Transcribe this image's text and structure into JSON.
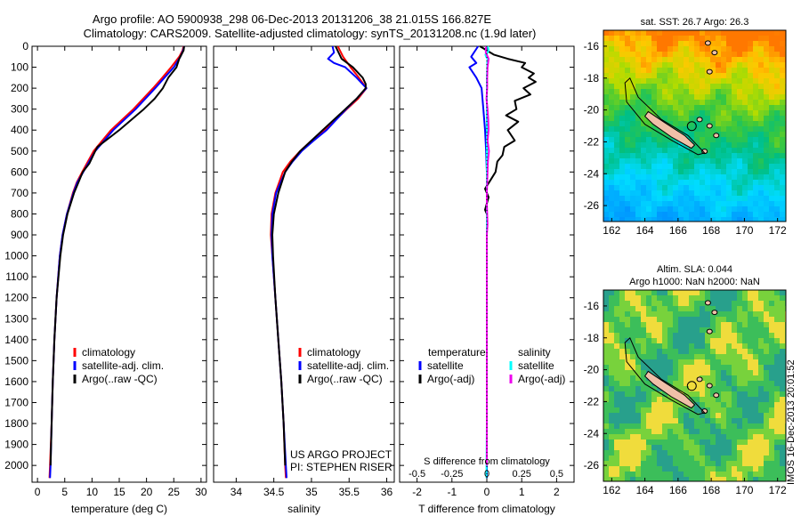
{
  "header": {
    "line1": "Argo profile: AO 5900938_298 06-Dec-2013 20131206_38 21.015S 166.827E",
    "line2": "Climatology: CARS2009. Satellite-adjusted climatology: synTS_20131208.nc (1.9d later)"
  },
  "side_stamp": "IMOS 16-Dec-2013 20:01:52",
  "chart_data": [
    {
      "id": "temperature",
      "type": "line",
      "xlabel": "temperature (deg C)",
      "ylabel": "",
      "xlim": [
        -1,
        31
      ],
      "ylim": [
        2080,
        0
      ],
      "xticks": [
        0,
        5,
        10,
        15,
        20,
        25,
        30
      ],
      "yticks": [
        0,
        100,
        200,
        300,
        400,
        500,
        600,
        700,
        800,
        900,
        1000,
        1100,
        1200,
        1300,
        1400,
        1500,
        1600,
        1700,
        1800,
        1900,
        2000
      ],
      "legend": {
        "position": "lower-left",
        "entries": [
          "climatology",
          "satellite-adj. clim.",
          "Argo(..raw -QC)"
        ]
      },
      "series": [
        {
          "name": "climatology",
          "color": "#ff0000",
          "depth": [
            0,
            20,
            50,
            100,
            150,
            200,
            300,
            400,
            500,
            600,
            650,
            700,
            800,
            900,
            1000,
            1200,
            1400,
            1600,
            1800,
            2000,
            2060
          ],
          "values": [
            26.8,
            26.6,
            26.0,
            24.5,
            22.9,
            21.2,
            17.6,
            13.5,
            10.3,
            8.2,
            7.2,
            6.5,
            5.4,
            4.6,
            4.1,
            3.5,
            3.1,
            2.8,
            2.6,
            2.3,
            2.2
          ]
        },
        {
          "name": "satellite-adj. clim.",
          "color": "#0000ff",
          "depth": [
            0,
            20,
            50,
            100,
            150,
            200,
            300,
            400,
            500,
            600,
            650,
            700,
            800,
            900,
            1000,
            1200,
            1400,
            1600,
            1800,
            2000,
            2060
          ],
          "values": [
            26.9,
            26.7,
            26.2,
            25.0,
            23.3,
            21.6,
            18.0,
            13.9,
            10.6,
            8.4,
            7.3,
            6.6,
            5.4,
            4.6,
            4.1,
            3.5,
            3.1,
            2.8,
            2.6,
            2.4,
            2.3
          ]
        },
        {
          "name": "Argo(..raw -QC)",
          "color": "#000000",
          "depth": [
            0,
            20,
            60,
            100,
            150,
            200,
            250,
            300,
            400,
            480,
            500,
            560,
            600,
            650,
            700,
            800,
            900,
            1000,
            1200,
            1400,
            1600,
            1800,
            2000
          ],
          "values": [
            26.9,
            26.8,
            26.0,
            25.5,
            24.0,
            23.0,
            21.5,
            19.5,
            15.0,
            11.0,
            10.6,
            9.5,
            8.3,
            7.5,
            6.7,
            5.5,
            4.7,
            4.2,
            3.5,
            3.1,
            2.8,
            2.6,
            2.4
          ]
        }
      ]
    },
    {
      "id": "salinity",
      "type": "line",
      "xlabel": "salinity",
      "ylabel": "",
      "xlim": [
        33.7,
        36.1
      ],
      "ylim": [
        2080,
        0
      ],
      "xticks": [
        34,
        34.5,
        35,
        35.5,
        36
      ],
      "legend": {
        "position": "lower-right",
        "entries": [
          "climatology",
          "satellite-adj. clim.",
          "Argo(..raw -QC)"
        ]
      },
      "annotation": [
        "US ARGO PROJECT",
        "PI: STEPHEN RISER"
      ],
      "series": [
        {
          "name": "climatology",
          "color": "#ff0000",
          "depth": [
            0,
            50,
            100,
            150,
            200,
            250,
            300,
            400,
            450,
            500,
            550,
            600,
            700,
            800,
            900,
            1000,
            1200,
            1400,
            1600,
            1800,
            2000,
            2060
          ],
          "values": [
            35.35,
            35.42,
            35.52,
            35.63,
            35.73,
            35.62,
            35.47,
            35.18,
            35.0,
            34.85,
            34.72,
            34.62,
            34.52,
            34.47,
            34.46,
            34.48,
            34.52,
            34.56,
            34.6,
            34.63,
            34.65,
            34.66
          ]
        },
        {
          "name": "satellite-adj. clim.",
          "color": "#0000ff",
          "depth": [
            0,
            30,
            60,
            80,
            100,
            150,
            200,
            250,
            300,
            400,
            450,
            500,
            550,
            600,
            700,
            800,
            900,
            1000,
            1200,
            1400,
            1600,
            1800,
            2000,
            2060
          ],
          "values": [
            35.28,
            35.3,
            35.22,
            35.3,
            35.45,
            35.6,
            35.73,
            35.6,
            35.46,
            35.2,
            35.03,
            34.87,
            34.75,
            34.65,
            34.53,
            34.48,
            34.47,
            34.48,
            34.52,
            34.56,
            34.6,
            34.63,
            34.66,
            34.67
          ]
        },
        {
          "name": "Argo(..raw -QC)",
          "color": "#000000",
          "depth": [
            0,
            60,
            100,
            150,
            180,
            200,
            250,
            300,
            400,
            450,
            500,
            550,
            600,
            700,
            800,
            900,
            1000,
            1200,
            1400,
            1600,
            1800,
            2000
          ],
          "values": [
            35.32,
            35.4,
            35.55,
            35.68,
            35.72,
            35.72,
            35.6,
            35.45,
            35.15,
            35.0,
            34.85,
            34.74,
            34.65,
            34.56,
            34.5,
            34.48,
            34.49,
            34.52,
            34.56,
            34.6,
            34.63,
            34.65
          ]
        }
      ]
    },
    {
      "id": "differences",
      "type": "line",
      "xlabel": "T difference from climatology",
      "top_axis_label": "S difference from climatology",
      "xlim": [
        -2.5,
        2.5
      ],
      "ylim": [
        2080,
        0
      ],
      "xticks": [
        -2,
        -1,
        0,
        1,
        2
      ],
      "top_ticks": [
        "-0.5",
        "-0.25",
        "0",
        "0.25",
        "0.5"
      ],
      "legend": {
        "position": "lower",
        "groups": [
          "temperature",
          "salinity"
        ],
        "entries": [
          "satellite",
          "Argo(-adj)",
          "satellite",
          "Argo(-adj)"
        ]
      },
      "series": [
        {
          "name": "satellite",
          "group": "temperature",
          "color": "#0000ff",
          "depth": [
            0,
            50,
            80,
            100,
            150,
            200,
            300,
            400,
            500,
            600,
            700,
            800,
            900,
            1000,
            1200,
            1400,
            1600,
            1800,
            2000,
            2060
          ],
          "values": [
            -0.25,
            -0.45,
            -0.3,
            -0.5,
            -0.3,
            -0.15,
            -0.1,
            -0.05,
            -0.02,
            0,
            0,
            0,
            0,
            0,
            0,
            0,
            0,
            0,
            0,
            0
          ]
        },
        {
          "name": "Argo(-adj)",
          "group": "temperature",
          "color": "#000000",
          "depth": [
            0,
            40,
            60,
            80,
            100,
            130,
            150,
            170,
            200,
            230,
            260,
            300,
            330,
            360,
            400,
            450,
            480,
            520,
            550,
            600,
            640,
            680,
            720,
            780,
            800,
            850,
            900,
            1000,
            1200,
            1400,
            1600,
            1800,
            2000
          ],
          "values": [
            -0.2,
            0.2,
            0.6,
            1.1,
            1.0,
            1.35,
            1.2,
            1.4,
            1.05,
            1.25,
            0.8,
            0.85,
            0.55,
            0.9,
            0.6,
            0.8,
            0.5,
            0.45,
            0.3,
            0.25,
            0.1,
            -0.05,
            0.05,
            -0.05,
            0,
            0,
            0,
            0,
            0,
            0,
            0,
            0,
            0
          ]
        },
        {
          "name": "satellite",
          "group": "salinity",
          "color": "#00ffff",
          "depth": [
            0,
            10,
            20,
            30,
            40,
            50,
            60,
            80,
            100,
            150,
            200,
            300,
            400,
            500,
            600,
            800,
            1000,
            1200,
            1400,
            1600,
            1800,
            2000,
            2060
          ],
          "values": [
            0.02,
            0.04,
            0.05,
            0.02,
            -0.04,
            -0.02,
            0.02,
            0.01,
            0.01,
            0.0,
            0.0,
            0.0,
            0.0,
            0.0,
            0.0,
            0.0,
            0.0,
            0.0,
            0.0,
            0.0,
            0.0,
            -0.01,
            -0.01
          ]
        },
        {
          "name": "Argo(-adj)",
          "group": "salinity",
          "color": "#ee00ee",
          "depth": [
            0,
            30,
            60,
            100,
            150,
            200,
            250,
            300,
            350,
            400,
            450,
            500,
            550,
            600,
            650,
            700,
            750,
            800,
            850,
            900,
            1000,
            1200,
            1400,
            1600,
            1800,
            2000
          ],
          "values": [
            -0.02,
            -0.03,
            0.05,
            0.02,
            0.01,
            0.01,
            -0.01,
            0.02,
            0.04,
            0.05,
            0.02,
            0.06,
            0.03,
            0.02,
            0.01,
            0.0,
            0.0,
            0.01,
            0.02,
            0.0,
            0.0,
            0.0,
            0.0,
            0.0,
            0.0,
            0.0
          ]
        }
      ]
    },
    {
      "id": "sst_map",
      "type": "heatmap",
      "title": "sat. SST: 26.7 Argo: 26.3",
      "xticks": [
        162,
        164,
        166,
        168,
        170,
        172
      ],
      "yticks": [
        -16,
        -18,
        -20,
        -22,
        -24,
        -26
      ],
      "xlim": [
        161.5,
        172.5
      ],
      "ylim": [
        -27,
        -15
      ],
      "profile_position": [
        166.827,
        -21.015
      ]
    },
    {
      "id": "sla_map",
      "type": "heatmap",
      "title": "Altim. SLA: 0.044",
      "subtitle": "Argo h1000: NaN h2000: NaN",
      "xticks": [
        162,
        164,
        166,
        168,
        170,
        172
      ],
      "yticks": [
        -16,
        -18,
        -20,
        -22,
        -24,
        -26
      ],
      "xlim": [
        161.5,
        172.5
      ],
      "ylim": [
        -27,
        -15
      ],
      "profile_position": [
        166.827,
        -21.015
      ]
    }
  ]
}
